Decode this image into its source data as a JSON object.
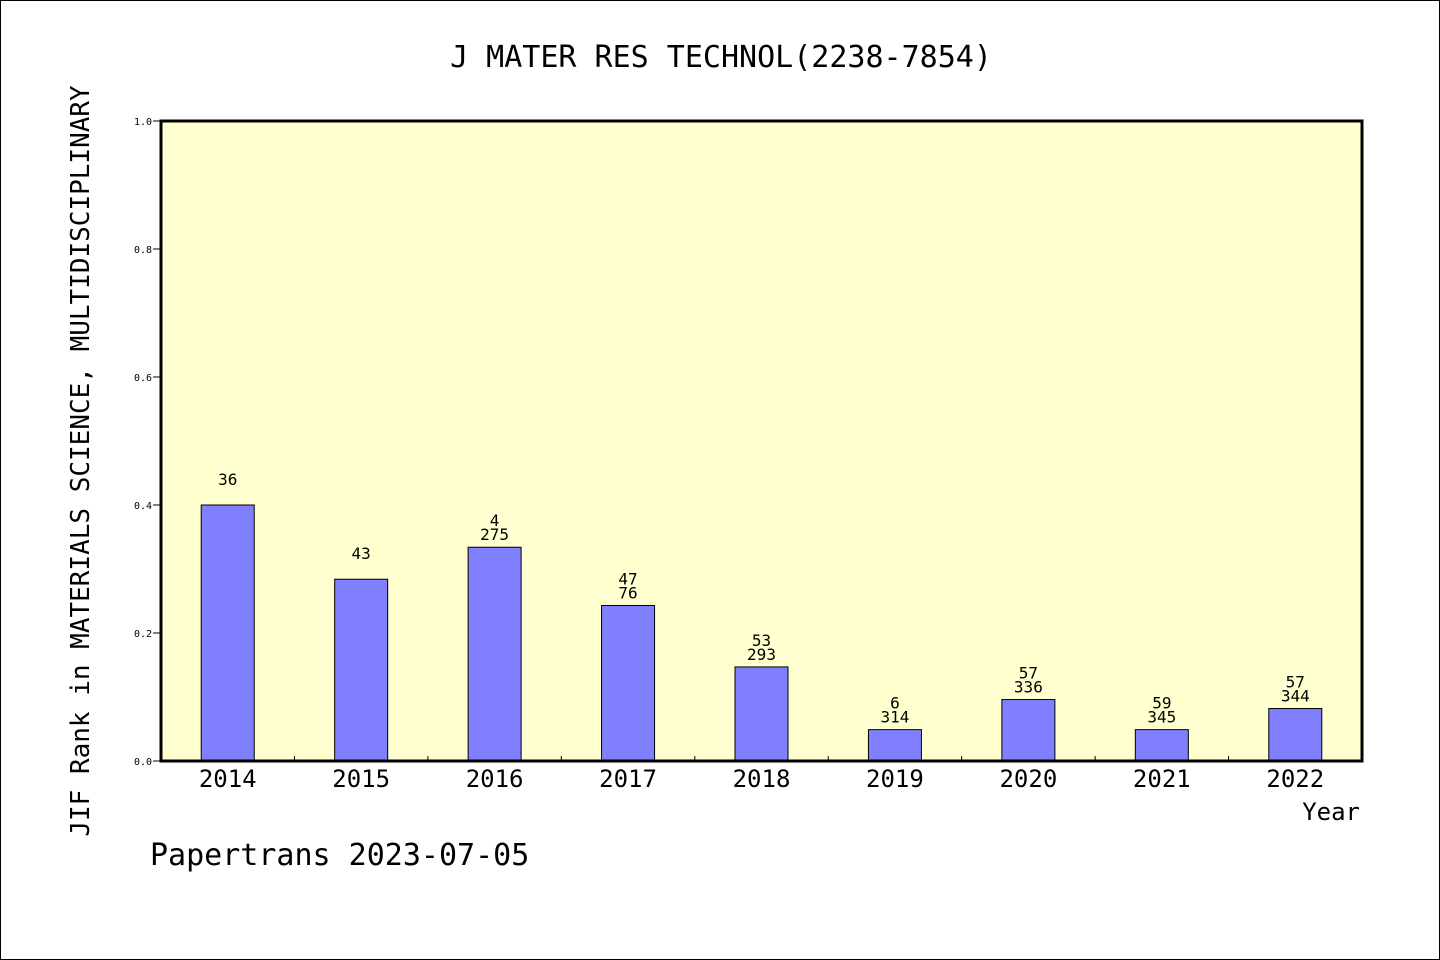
{
  "chart_data": {
    "type": "bar",
    "title": "J MATER RES TECHNOL(2238-7854)",
    "xlabel": "Year",
    "ylabel": "JIF Rank in MATERIALS SCIENCE, MULTIDISCIPLINARY",
    "ylim": [
      0,
      1.0
    ],
    "yticks": [
      "0.0",
      "0.2",
      "0.4",
      "0.6",
      "0.8",
      "1.0"
    ],
    "categories": [
      "2014",
      "2015",
      "2016",
      "2017",
      "2018",
      "2019",
      "2020",
      "2021",
      "2022"
    ],
    "values": [
      0.4,
      0.284,
      0.334,
      0.243,
      0.147,
      0.049,
      0.096,
      0.049,
      0.082
    ],
    "data_labels": [
      [
        "36"
      ],
      [
        "43"
      ],
      [
        "4",
        "275"
      ],
      [
        "47",
        "76"
      ],
      [
        "53",
        "293"
      ],
      [
        "6",
        "314"
      ],
      [
        "57",
        "336"
      ],
      [
        "59",
        "345"
      ],
      [
        "57",
        "344"
      ]
    ],
    "grid": false,
    "legend": "none",
    "colors": {
      "plot_background": "#ffffd0",
      "bar": "#8080ff"
    }
  },
  "footer": {
    "credit": "Papertrans 2023-07-05"
  }
}
